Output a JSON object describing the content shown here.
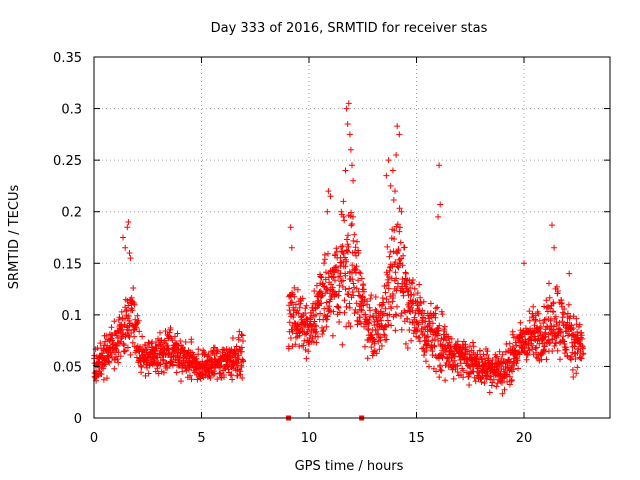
{
  "chart_data": {
    "type": "scatter",
    "title": "Day 333 of 2016, SRMTID for receiver stas",
    "xlabel": "GPS time / hours",
    "ylabel": "SRMTID / TECUs",
    "xlim": [
      0,
      24
    ],
    "ylim": [
      0,
      0.35
    ],
    "x_ticks": [
      0,
      5,
      10,
      15,
      20
    ],
    "x_tick_labels": [
      "0",
      "5",
      "10",
      "15",
      "20"
    ],
    "y_ticks": [
      0,
      0.05,
      0.1,
      0.15,
      0.2,
      0.25,
      0.3,
      0.35
    ],
    "y_tick_labels": [
      "0",
      "0.05",
      "0.1",
      "0.15",
      "0.2",
      "0.25",
      "0.3",
      "0.35"
    ],
    "grid": true,
    "marker": "+",
    "color": "#ff0000",
    "point_sampling_hours": 0.02,
    "envelope": [
      {
        "x": 0.0,
        "center": 0.05,
        "spread": 0.02
      },
      {
        "x": 0.5,
        "center": 0.06,
        "spread": 0.025
      },
      {
        "x": 1.0,
        "center": 0.07,
        "spread": 0.03
      },
      {
        "x": 1.5,
        "center": 0.09,
        "spread": 0.045
      },
      {
        "x": 1.8,
        "center": 0.1,
        "spread": 0.05
      },
      {
        "x": 2.2,
        "center": 0.06,
        "spread": 0.025
      },
      {
        "x": 3.0,
        "center": 0.06,
        "spread": 0.025
      },
      {
        "x": 3.5,
        "center": 0.07,
        "spread": 0.03
      },
      {
        "x": 4.0,
        "center": 0.06,
        "spread": 0.025
      },
      {
        "x": 5.0,
        "center": 0.05,
        "spread": 0.02
      },
      {
        "x": 6.0,
        "center": 0.055,
        "spread": 0.025
      },
      {
        "x": 6.9,
        "center": 0.06,
        "spread": 0.025
      },
      {
        "x": 9.1,
        "center": 0.1,
        "spread": 0.04
      },
      {
        "x": 9.5,
        "center": 0.095,
        "spread": 0.035
      },
      {
        "x": 10.0,
        "center": 0.08,
        "spread": 0.03
      },
      {
        "x": 10.5,
        "center": 0.11,
        "spread": 0.05
      },
      {
        "x": 11.0,
        "center": 0.12,
        "spread": 0.05
      },
      {
        "x": 11.5,
        "center": 0.14,
        "spread": 0.07
      },
      {
        "x": 12.0,
        "center": 0.15,
        "spread": 0.08
      },
      {
        "x": 12.5,
        "center": 0.11,
        "spread": 0.05
      },
      {
        "x": 13.0,
        "center": 0.08,
        "spread": 0.03
      },
      {
        "x": 13.5,
        "center": 0.1,
        "spread": 0.05
      },
      {
        "x": 14.0,
        "center": 0.16,
        "spread": 0.08
      },
      {
        "x": 14.5,
        "center": 0.12,
        "spread": 0.06
      },
      {
        "x": 15.0,
        "center": 0.1,
        "spread": 0.05
      },
      {
        "x": 15.5,
        "center": 0.08,
        "spread": 0.04
      },
      {
        "x": 16.0,
        "center": 0.08,
        "spread": 0.05
      },
      {
        "x": 16.5,
        "center": 0.06,
        "spread": 0.025
      },
      {
        "x": 17.0,
        "center": 0.06,
        "spread": 0.025
      },
      {
        "x": 18.0,
        "center": 0.05,
        "spread": 0.025
      },
      {
        "x": 19.0,
        "center": 0.045,
        "spread": 0.025
      },
      {
        "x": 19.5,
        "center": 0.06,
        "spread": 0.03
      },
      {
        "x": 20.0,
        "center": 0.075,
        "spread": 0.03
      },
      {
        "x": 21.0,
        "center": 0.085,
        "spread": 0.04
      },
      {
        "x": 21.5,
        "center": 0.1,
        "spread": 0.05
      },
      {
        "x": 22.0,
        "center": 0.08,
        "spread": 0.04
      },
      {
        "x": 22.7,
        "center": 0.07,
        "spread": 0.03
      }
    ],
    "data_segments": [
      {
        "start": 0.0,
        "end": 6.95
      },
      {
        "start": 9.05,
        "end": 22.75
      }
    ],
    "outliers": [
      {
        "x": 1.35,
        "y": 0.175
      },
      {
        "x": 1.55,
        "y": 0.185
      },
      {
        "x": 1.6,
        "y": 0.19
      },
      {
        "x": 1.65,
        "y": 0.16
      },
      {
        "x": 1.7,
        "y": 0.155
      },
      {
        "x": 1.45,
        "y": 0.165
      },
      {
        "x": 9.15,
        "y": 0.185
      },
      {
        "x": 9.2,
        "y": 0.165
      },
      {
        "x": 10.85,
        "y": 0.2
      },
      {
        "x": 10.9,
        "y": 0.22
      },
      {
        "x": 11.0,
        "y": 0.215
      },
      {
        "x": 11.5,
        "y": 0.2
      },
      {
        "x": 11.6,
        "y": 0.21
      },
      {
        "x": 11.75,
        "y": 0.3
      },
      {
        "x": 11.85,
        "y": 0.305
      },
      {
        "x": 11.8,
        "y": 0.285
      },
      {
        "x": 11.9,
        "y": 0.275
      },
      {
        "x": 11.95,
        "y": 0.26
      },
      {
        "x": 12.0,
        "y": 0.245
      },
      {
        "x": 12.05,
        "y": 0.23
      },
      {
        "x": 11.7,
        "y": 0.24
      },
      {
        "x": 13.6,
        "y": 0.235
      },
      {
        "x": 13.7,
        "y": 0.25
      },
      {
        "x": 13.8,
        "y": 0.225
      },
      {
        "x": 13.9,
        "y": 0.24
      },
      {
        "x": 14.0,
        "y": 0.22
      },
      {
        "x": 14.05,
        "y": 0.255
      },
      {
        "x": 14.1,
        "y": 0.283
      },
      {
        "x": 14.2,
        "y": 0.275
      },
      {
        "x": 14.3,
        "y": 0.2
      },
      {
        "x": 16.05,
        "y": 0.245
      },
      {
        "x": 16.1,
        "y": 0.207
      },
      {
        "x": 16.0,
        "y": 0.195
      },
      {
        "x": 21.3,
        "y": 0.187
      },
      {
        "x": 21.4,
        "y": 0.165
      },
      {
        "x": 20.0,
        "y": 0.15
      },
      {
        "x": 22.1,
        "y": 0.14
      }
    ],
    "zero_markers": [
      {
        "x": 9.05,
        "y": 0
      },
      {
        "x": 12.45,
        "y": 0
      }
    ]
  }
}
